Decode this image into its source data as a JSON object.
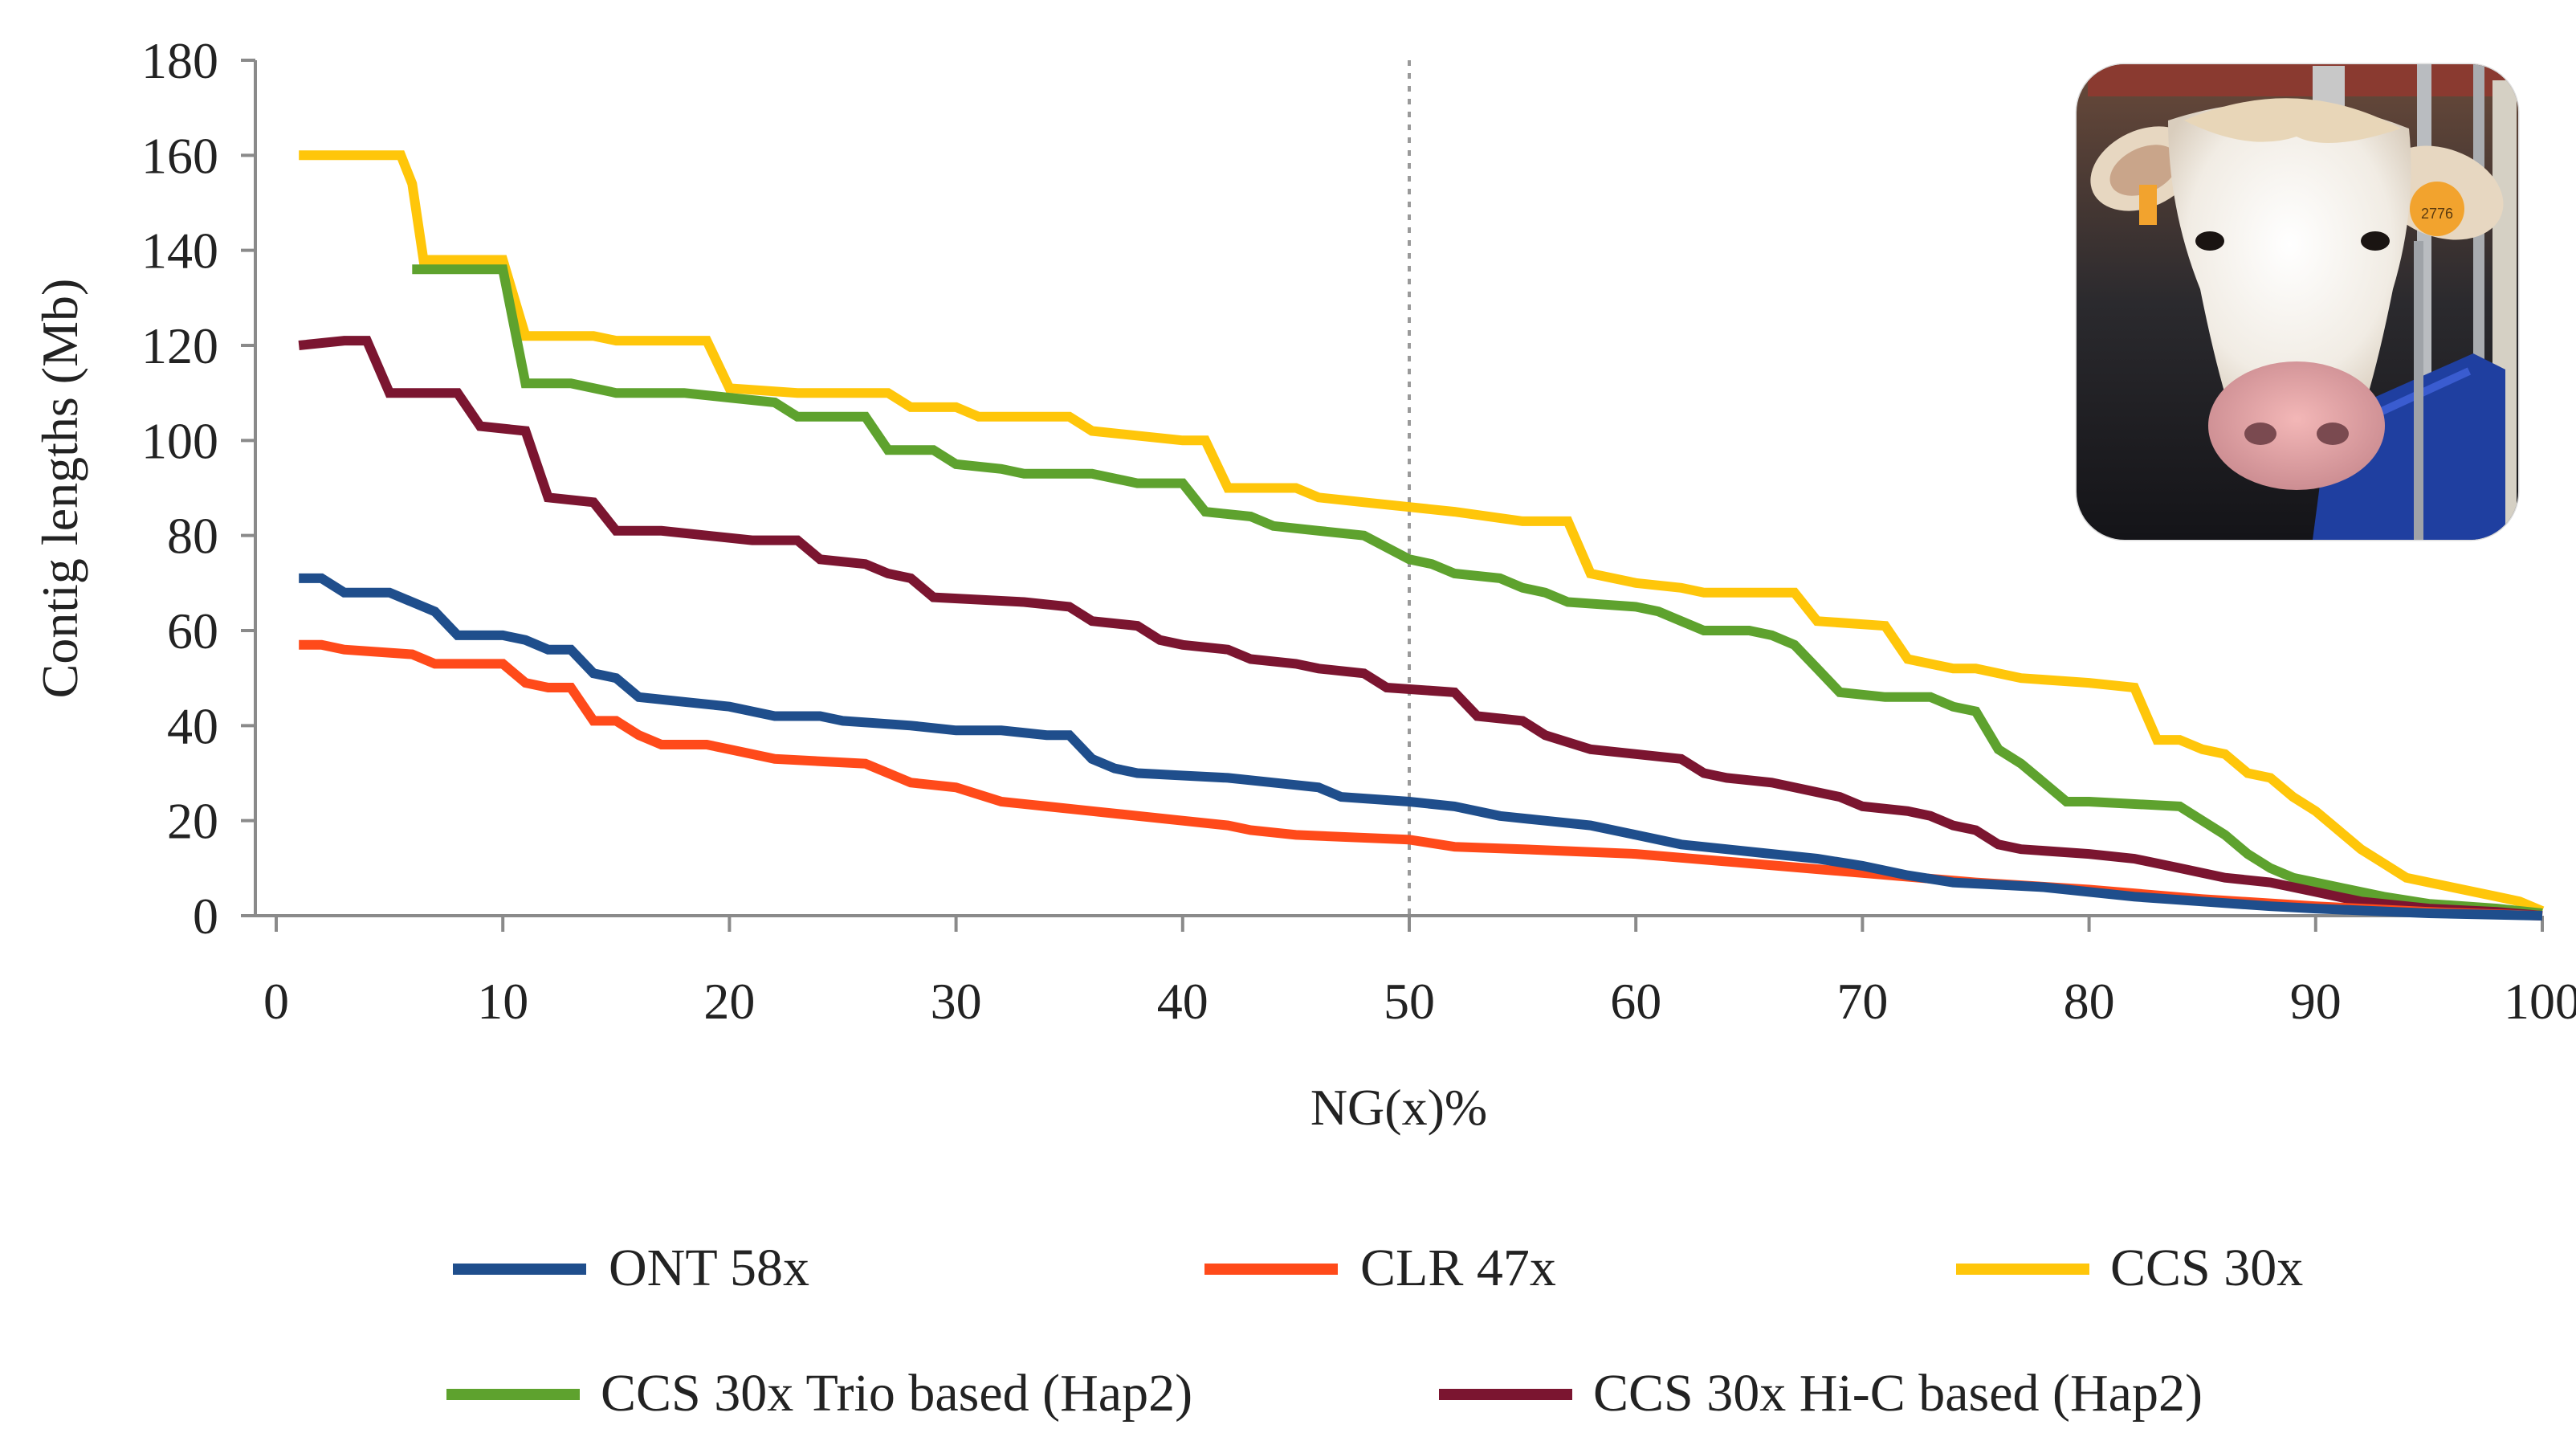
{
  "chart_data": {
    "type": "line",
    "title": "",
    "xlabel": "NG(x)%",
    "ylabel": "Contig lengths (Mb)",
    "xlim": [
      0,
      100
    ],
    "ylim": [
      0,
      180
    ],
    "x_ticks": [
      "0",
      "10",
      "20",
      "30",
      "40",
      "50",
      "60",
      "70",
      "80",
      "90",
      "100"
    ],
    "y_ticks": [
      "0",
      "20",
      "40",
      "60",
      "80",
      "100",
      "120",
      "140",
      "160",
      "180"
    ],
    "grid": false,
    "reference_line_x": 50,
    "legend_position": "bottom",
    "series": [
      {
        "name": "ONT 58x",
        "color": "#1f4e8c",
        "points": [
          [
            1,
            71
          ],
          [
            2,
            71
          ],
          [
            3,
            68
          ],
          [
            5,
            68
          ],
          [
            6,
            66
          ],
          [
            7,
            64
          ],
          [
            8,
            59
          ],
          [
            10,
            59
          ],
          [
            11,
            58
          ],
          [
            12,
            56
          ],
          [
            13,
            56
          ],
          [
            14,
            51
          ],
          [
            15,
            50
          ],
          [
            16,
            46
          ],
          [
            18,
            45
          ],
          [
            20,
            44
          ],
          [
            21,
            43
          ],
          [
            22,
            42
          ],
          [
            24,
            42
          ],
          [
            25,
            41
          ],
          [
            28,
            40
          ],
          [
            30,
            39
          ],
          [
            32,
            39
          ],
          [
            34,
            38
          ],
          [
            35,
            38
          ],
          [
            36,
            33
          ],
          [
            37,
            31
          ],
          [
            38,
            30
          ],
          [
            40,
            29.5
          ],
          [
            42,
            29
          ],
          [
            44,
            28
          ],
          [
            46,
            27
          ],
          [
            47,
            25
          ],
          [
            50,
            24
          ],
          [
            52,
            23
          ],
          [
            54,
            21
          ],
          [
            56,
            20
          ],
          [
            58,
            19
          ],
          [
            60,
            17
          ],
          [
            62,
            15
          ],
          [
            64,
            14
          ],
          [
            66,
            13
          ],
          [
            68,
            12
          ],
          [
            70,
            10.5
          ],
          [
            72,
            8.5
          ],
          [
            74,
            7
          ],
          [
            76,
            6.5
          ],
          [
            78,
            6
          ],
          [
            80,
            5
          ],
          [
            82,
            4
          ],
          [
            85,
            3
          ],
          [
            88,
            2
          ],
          [
            90,
            1.5
          ],
          [
            95,
            0.5
          ],
          [
            100,
            0
          ]
        ]
      },
      {
        "name": "CLR 47x",
        "color": "#ff4a1a",
        "points": [
          [
            1,
            57
          ],
          [
            2,
            57
          ],
          [
            3,
            56
          ],
          [
            6,
            55
          ],
          [
            7,
            53
          ],
          [
            10,
            53
          ],
          [
            11,
            49
          ],
          [
            12,
            48
          ],
          [
            13,
            48
          ],
          [
            14,
            41
          ],
          [
            15,
            41
          ],
          [
            16,
            38
          ],
          [
            17,
            36
          ],
          [
            19,
            36
          ],
          [
            20,
            35
          ],
          [
            22,
            33
          ],
          [
            26,
            32
          ],
          [
            28,
            28
          ],
          [
            30,
            27
          ],
          [
            32,
            24
          ],
          [
            34,
            23
          ],
          [
            36,
            22
          ],
          [
            40,
            20
          ],
          [
            42,
            19
          ],
          [
            43,
            18
          ],
          [
            45,
            17
          ],
          [
            50,
            16
          ],
          [
            52,
            14.5
          ],
          [
            55,
            14
          ],
          [
            60,
            13
          ],
          [
            65,
            11
          ],
          [
            70,
            9
          ],
          [
            75,
            7
          ],
          [
            80,
            5.5
          ],
          [
            85,
            3.5
          ],
          [
            90,
            2
          ],
          [
            95,
            0.8
          ],
          [
            100,
            0
          ]
        ]
      },
      {
        "name": "CCS 30x",
        "color": "#ffc60a",
        "points": [
          [
            1,
            160
          ],
          [
            5.5,
            160
          ],
          [
            6,
            154
          ],
          [
            6.5,
            138
          ],
          [
            10,
            138
          ],
          [
            11,
            122
          ],
          [
            14,
            122
          ],
          [
            15,
            121
          ],
          [
            19,
            121
          ],
          [
            20,
            111
          ],
          [
            23,
            110
          ],
          [
            25,
            110
          ],
          [
            27,
            110
          ],
          [
            28,
            107
          ],
          [
            30,
            107
          ],
          [
            31,
            105
          ],
          [
            35,
            105
          ],
          [
            36,
            102
          ],
          [
            40,
            100
          ],
          [
            41,
            100
          ],
          [
            42,
            90
          ],
          [
            45,
            90
          ],
          [
            46,
            88
          ],
          [
            48,
            87
          ],
          [
            50,
            86
          ],
          [
            52,
            85
          ],
          [
            55,
            83
          ],
          [
            57,
            83
          ],
          [
            58,
            72
          ],
          [
            60,
            70
          ],
          [
            62,
            69
          ],
          [
            63,
            68
          ],
          [
            67,
            68
          ],
          [
            68,
            62
          ],
          [
            71,
            61
          ],
          [
            72,
            54
          ],
          [
            74,
            52
          ],
          [
            75,
            52
          ],
          [
            77,
            50
          ],
          [
            80,
            49
          ],
          [
            82,
            48
          ],
          [
            83,
            37
          ],
          [
            84,
            37
          ],
          [
            85,
            35
          ],
          [
            86,
            34
          ],
          [
            87,
            30
          ],
          [
            88,
            29
          ],
          [
            89,
            25
          ],
          [
            90,
            22
          ],
          [
            91,
            18
          ],
          [
            92,
            14
          ],
          [
            93,
            11
          ],
          [
            94,
            8
          ],
          [
            95,
            7
          ],
          [
            96,
            6
          ],
          [
            97,
            5
          ],
          [
            98,
            4
          ],
          [
            99,
            3
          ],
          [
            100,
            1
          ]
        ]
      },
      {
        "name": "CCS 30x Trio based (Hap2)",
        "color": "#5ea22e",
        "points": [
          [
            6,
            136
          ],
          [
            10,
            136
          ],
          [
            11,
            112
          ],
          [
            13,
            112
          ],
          [
            15,
            110
          ],
          [
            18,
            110
          ],
          [
            20,
            109
          ],
          [
            22,
            108
          ],
          [
            23,
            105
          ],
          [
            25,
            105
          ],
          [
            26,
            105
          ],
          [
            27,
            98
          ],
          [
            29,
            98
          ],
          [
            30,
            95
          ],
          [
            32,
            94
          ],
          [
            33,
            93
          ],
          [
            36,
            93
          ],
          [
            38,
            91
          ],
          [
            40,
            91
          ],
          [
            41,
            85
          ],
          [
            43,
            84
          ],
          [
            44,
            82
          ],
          [
            46,
            81
          ],
          [
            48,
            80
          ],
          [
            50,
            75
          ],
          [
            51,
            74
          ],
          [
            52,
            72
          ],
          [
            54,
            71
          ],
          [
            55,
            69
          ],
          [
            56,
            68
          ],
          [
            57,
            66
          ],
          [
            60,
            65
          ],
          [
            61,
            64
          ],
          [
            62,
            62
          ],
          [
            63,
            60
          ],
          [
            65,
            60
          ],
          [
            66,
            59
          ],
          [
            67,
            57
          ],
          [
            68,
            52
          ],
          [
            69,
            47
          ],
          [
            71,
            46
          ],
          [
            73,
            46
          ],
          [
            74,
            44
          ],
          [
            75,
            43
          ],
          [
            76,
            35
          ],
          [
            77,
            32
          ],
          [
            78,
            28
          ],
          [
            79,
            24
          ],
          [
            80,
            24
          ],
          [
            84,
            23
          ],
          [
            85,
            20
          ],
          [
            86,
            17
          ],
          [
            87,
            13
          ],
          [
            88,
            10
          ],
          [
            89,
            8
          ],
          [
            91,
            6
          ],
          [
            93,
            4
          ],
          [
            95,
            2.5
          ],
          [
            98,
            1.5
          ],
          [
            100,
            0.5
          ]
        ]
      },
      {
        "name": "CCS 30x Hi-C based (Hap2)",
        "color": "#7b1530",
        "points": [
          [
            1,
            120
          ],
          [
            3,
            121
          ],
          [
            4,
            121
          ],
          [
            5,
            110
          ],
          [
            8,
            110
          ],
          [
            9,
            103
          ],
          [
            11,
            102
          ],
          [
            12,
            88
          ],
          [
            14,
            87
          ],
          [
            15,
            81
          ],
          [
            17,
            81
          ],
          [
            19,
            80
          ],
          [
            21,
            79
          ],
          [
            23,
            79
          ],
          [
            24,
            75
          ],
          [
            26,
            74
          ],
          [
            27,
            72
          ],
          [
            28,
            71
          ],
          [
            29,
            67
          ],
          [
            33,
            66
          ],
          [
            35,
            65
          ],
          [
            36,
            62
          ],
          [
            38,
            61
          ],
          [
            39,
            58
          ],
          [
            40,
            57
          ],
          [
            42,
            56
          ],
          [
            43,
            54
          ],
          [
            45,
            53
          ],
          [
            46,
            52
          ],
          [
            48,
            51
          ],
          [
            49,
            48
          ],
          [
            52,
            47
          ],
          [
            53,
            42
          ],
          [
            55,
            41
          ],
          [
            56,
            38
          ],
          [
            58,
            35
          ],
          [
            60,
            34
          ],
          [
            62,
            33
          ],
          [
            63,
            30
          ],
          [
            64,
            29
          ],
          [
            66,
            28
          ],
          [
            68,
            26
          ],
          [
            69,
            25
          ],
          [
            70,
            23
          ],
          [
            72,
            22
          ],
          [
            73,
            21
          ],
          [
            74,
            19
          ],
          [
            75,
            18
          ],
          [
            76,
            15
          ],
          [
            77,
            14
          ],
          [
            80,
            13
          ],
          [
            82,
            12
          ],
          [
            83,
            11
          ],
          [
            84,
            10
          ],
          [
            85,
            9
          ],
          [
            86,
            8
          ],
          [
            88,
            7
          ],
          [
            90,
            5
          ],
          [
            92,
            3
          ],
          [
            95,
            1.5
          ],
          [
            98,
            0.8
          ],
          [
            100,
            0
          ]
        ]
      }
    ]
  },
  "photo": {
    "subject": "cow-head-photo",
    "ear_tag_text": "2776"
  }
}
